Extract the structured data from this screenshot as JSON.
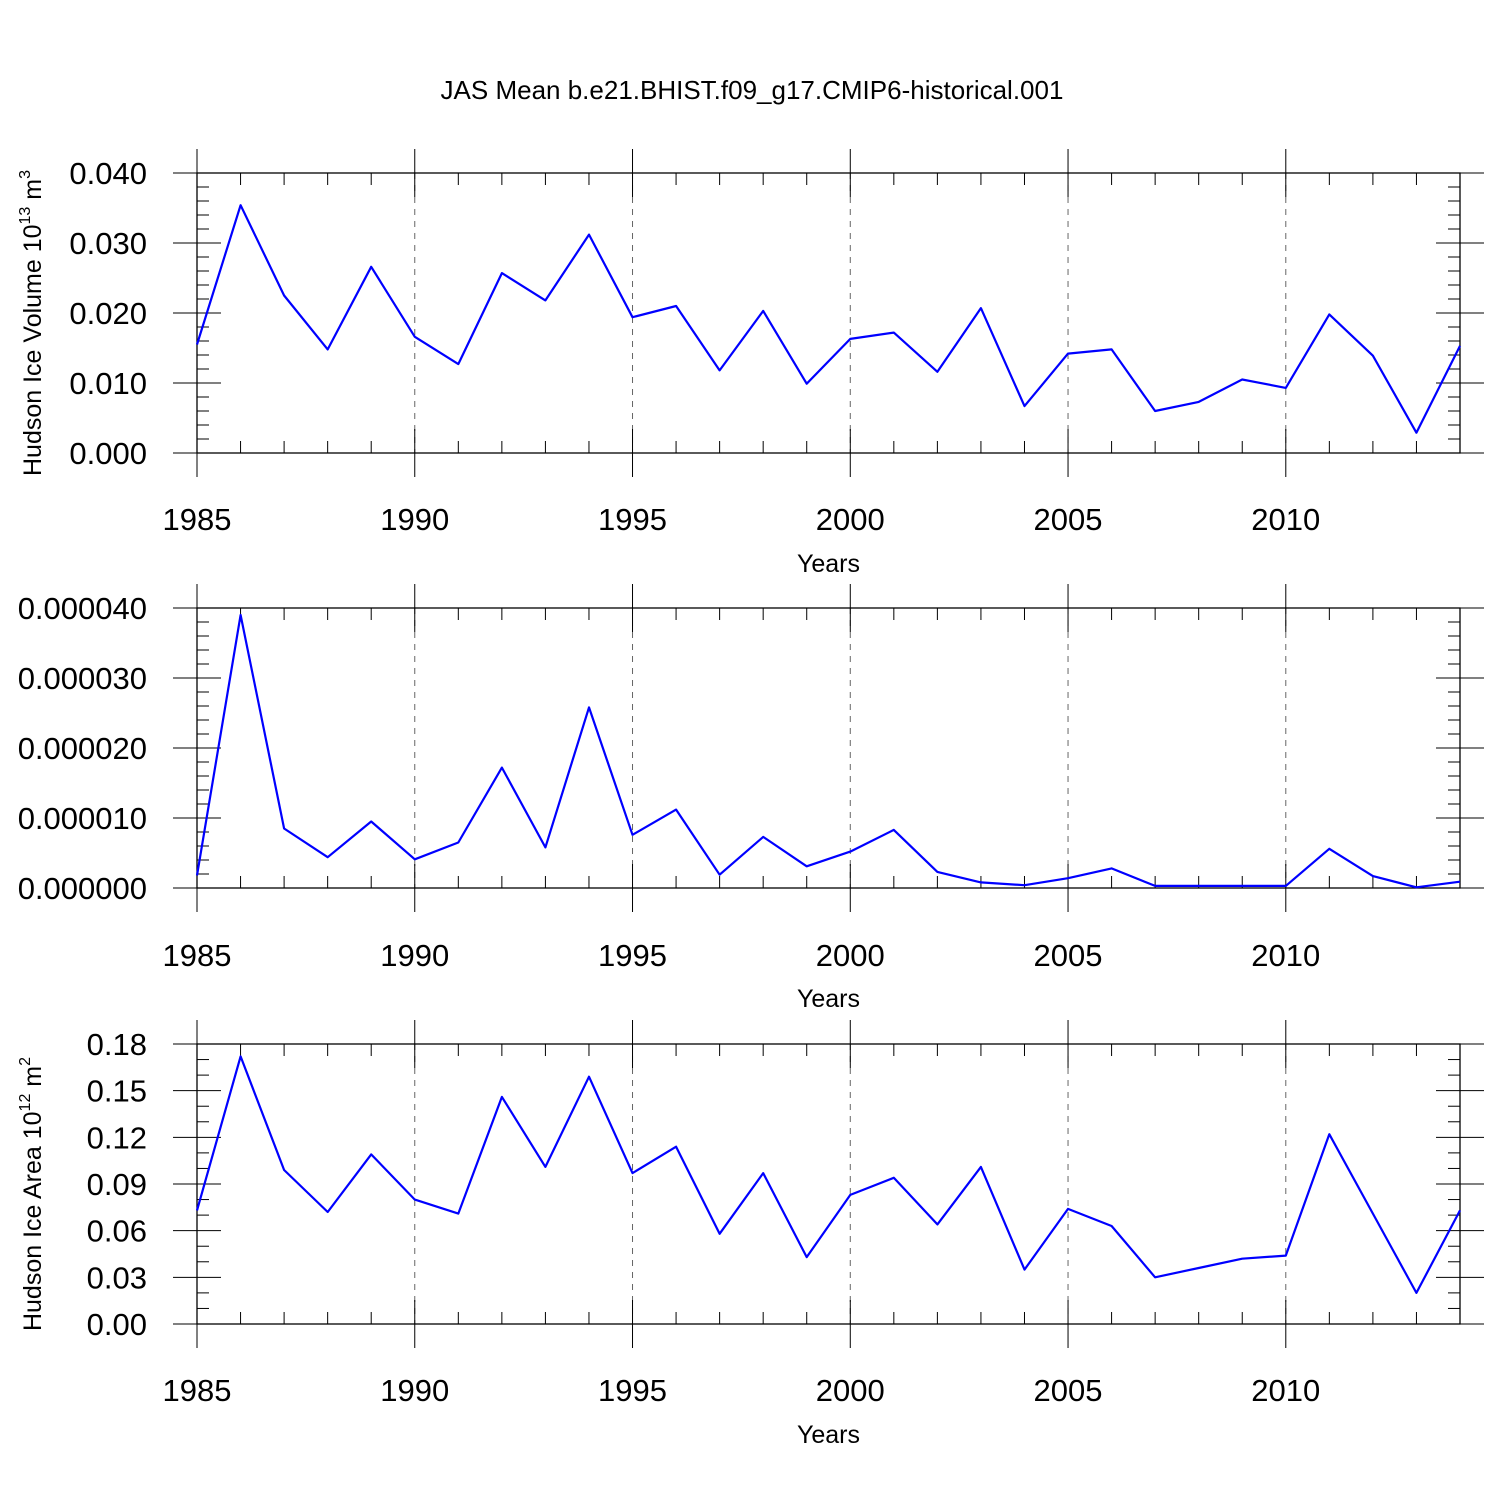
{
  "figure_title": "JAS Mean b.e21.BHIST.f09_g17.CMIP6-historical.001",
  "chart_data": [
    {
      "type": "line",
      "title": "JAS Mean b.e21.BHIST.f09_g17.CMIP6-historical.001",
      "xlabel": "Years",
      "ylabel": "Hudson Ice Volume",
      "ylabel_unit_base": "10",
      "ylabel_unit_exp": "13",
      "ylabel_unit_name": "m",
      "ylabel_unit_name_exp": "3",
      "xlim": [
        1985,
        2014
      ],
      "ylim": [
        0,
        0.04
      ],
      "x_ticks": [
        1985,
        1990,
        1995,
        2000,
        2005,
        2010
      ],
      "x_tick_labels": [
        "1985",
        "1990",
        "1995",
        "2000",
        "2005",
        "2010"
      ],
      "y_ticks": [
        0,
        0.01,
        0.02,
        0.03,
        0.04
      ],
      "y_tick_labels": [
        "0.000",
        "0.010",
        "0.020",
        "0.030",
        "0.040"
      ],
      "grid": "dashed vertical at major x ticks",
      "color": "#0000ff",
      "x": [
        1985,
        1986,
        1987,
        1988,
        1989,
        1990,
        1991,
        1992,
        1993,
        1994,
        1995,
        1996,
        1997,
        1998,
        1999,
        2000,
        2001,
        2002,
        2003,
        2004,
        2005,
        2006,
        2007,
        2008,
        2009,
        2010,
        2011,
        2012,
        2013,
        2014
      ],
      "values": [
        0.0155,
        0.0354,
        0.0225,
        0.0148,
        0.0266,
        0.0166,
        0.0127,
        0.0257,
        0.0218,
        0.0312,
        0.0194,
        0.021,
        0.0118,
        0.0203,
        0.0099,
        0.0163,
        0.0172,
        0.0116,
        0.0207,
        0.0067,
        0.0142,
        0.0148,
        0.006,
        0.0073,
        0.0105,
        0.0093,
        0.0198,
        0.0139,
        0.0029,
        0.0153
      ]
    },
    {
      "type": "line",
      "xlabel": "Years",
      "ylabel": "",
      "xlim": [
        1985,
        2014
      ],
      "ylim": [
        0,
        4e-05
      ],
      "x_ticks": [
        1985,
        1990,
        1995,
        2000,
        2005,
        2010
      ],
      "x_tick_labels": [
        "1985",
        "1990",
        "1995",
        "2000",
        "2005",
        "2010"
      ],
      "y_ticks": [
        0,
        1e-05,
        2e-05,
        3e-05,
        4e-05
      ],
      "y_tick_labels": [
        "0.000000",
        "0.000010",
        "0.000020",
        "0.000030",
        "0.000040"
      ],
      "grid": "dashed vertical at major x ticks",
      "color": "#0000ff",
      "x": [
        1985,
        1986,
        1987,
        1988,
        1989,
        1990,
        1991,
        1992,
        1993,
        1994,
        1995,
        1996,
        1997,
        1998,
        1999,
        2000,
        2001,
        2002,
        2003,
        2004,
        2005,
        2006,
        2007,
        2008,
        2009,
        2010,
        2011,
        2012,
        2013,
        2014
      ],
      "values": [
        1.8e-06,
        3.9e-05,
        8.5e-06,
        4.4e-06,
        9.5e-06,
        4.1e-06,
        6.5e-06,
        1.72e-05,
        5.8e-06,
        2.58e-05,
        7.6e-06,
        1.12e-05,
        1.9e-06,
        7.3e-06,
        3.1e-06,
        5.2e-06,
        8.3e-06,
        2.3e-06,
        8e-07,
        4e-07,
        1.4e-06,
        2.8e-06,
        3e-07,
        3e-07,
        3e-07,
        3e-07,
        5.6e-06,
        1.7e-06,
        1e-07,
        9e-07
      ]
    },
    {
      "type": "line",
      "xlabel": "Years",
      "ylabel": "Hudson Ice Area",
      "ylabel_unit_base": "10",
      "ylabel_unit_exp": "12",
      "ylabel_unit_name": "m",
      "ylabel_unit_name_exp": "2",
      "xlim": [
        1985,
        2014
      ],
      "ylim": [
        0,
        0.18
      ],
      "x_ticks": [
        1985,
        1990,
        1995,
        2000,
        2005,
        2010
      ],
      "x_tick_labels": [
        "1985",
        "1990",
        "1995",
        "2000",
        "2005",
        "2010"
      ],
      "y_ticks": [
        0,
        0.03,
        0.06,
        0.09,
        0.12,
        0.15,
        0.18
      ],
      "y_tick_labels": [
        "0.00",
        "0.03",
        "0.06",
        "0.09",
        "0.12",
        "0.15",
        "0.18"
      ],
      "grid": "dashed vertical at major x ticks",
      "color": "#0000ff",
      "x": [
        1985,
        1986,
        1987,
        1988,
        1989,
        1990,
        1991,
        1992,
        1993,
        1994,
        1995,
        1996,
        1997,
        1998,
        1999,
        2000,
        2001,
        2002,
        2003,
        2004,
        2005,
        2006,
        2007,
        2008,
        2009,
        2010,
        2011,
        2012,
        2013,
        2014
      ],
      "values": [
        0.073,
        0.172,
        0.099,
        0.072,
        0.109,
        0.08,
        0.071,
        0.146,
        0.101,
        0.159,
        0.097,
        0.114,
        0.058,
        0.097,
        0.043,
        0.083,
        0.094,
        0.064,
        0.101,
        0.035,
        0.074,
        0.063,
        0.03,
        0.036,
        0.042,
        0.044,
        0.122,
        0.071,
        0.02,
        0.073
      ]
    }
  ]
}
